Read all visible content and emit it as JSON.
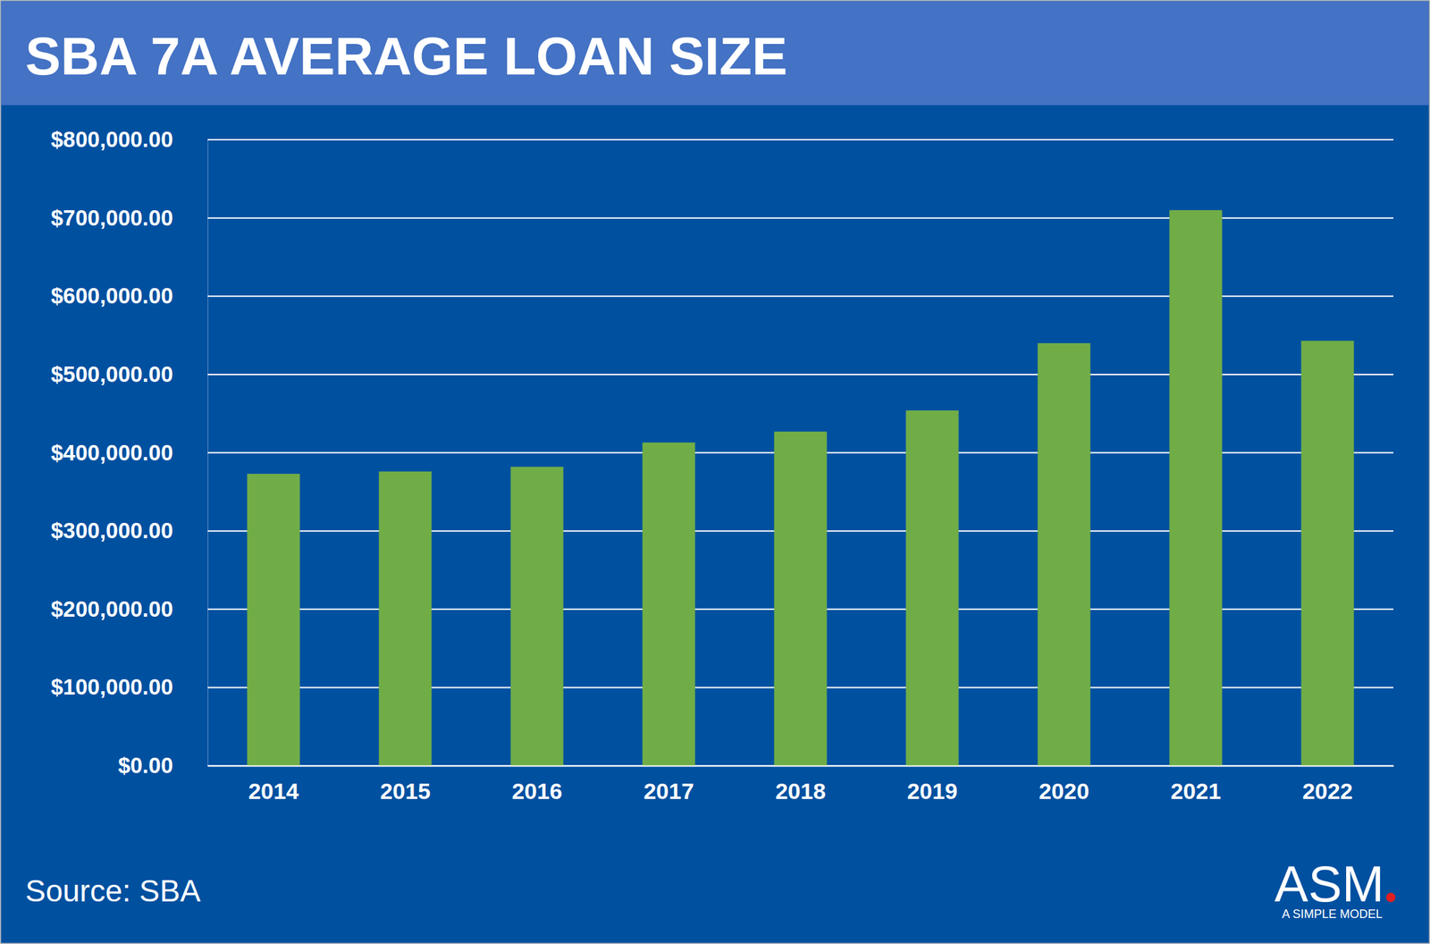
{
  "chart_data": {
    "type": "bar",
    "title": "SBA 7A AVERAGE LOAN SIZE",
    "source": "Source: SBA",
    "logo": "ASM",
    "logo_tagline": "A SIMPLE MODEL",
    "categories": [
      "2014",
      "2015",
      "2016",
      "2017",
      "2018",
      "2019",
      "2020",
      "2021",
      "2022"
    ],
    "values": [
      373000,
      376000,
      382000,
      413000,
      427000,
      454000,
      540000,
      710000,
      543000
    ],
    "color": "#70ad47",
    "ylim": [
      0,
      800000
    ],
    "yticks": [
      {
        "value": 0,
        "label": "$0.00"
      },
      {
        "value": 100000,
        "label": "$100,000.00"
      },
      {
        "value": 200000,
        "label": "$200,000.00"
      },
      {
        "value": 300000,
        "label": "$300,000.00"
      },
      {
        "value": 400000,
        "label": "$400,000.00"
      },
      {
        "value": 500000,
        "label": "$500,000.00"
      },
      {
        "value": 600000,
        "label": "$600,000.00"
      },
      {
        "value": 700000,
        "label": "$700,000.00"
      },
      {
        "value": 800000,
        "label": "$800,000.00"
      }
    ],
    "grid": true
  }
}
